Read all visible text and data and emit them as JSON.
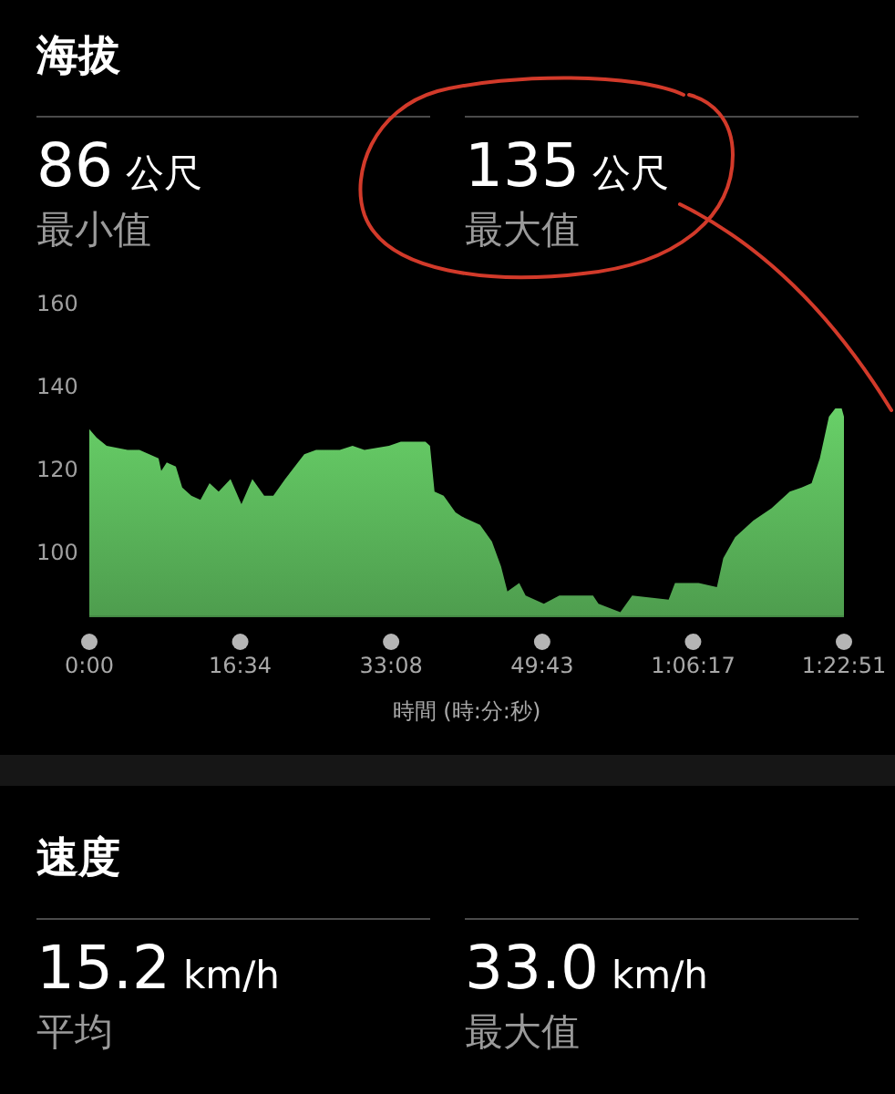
{
  "chart_data": [
    {
      "type": "area",
      "title": "海拔",
      "annotations": [
        "86 公尺",
        "最小值",
        "135 公尺",
        "最大值"
      ],
      "xlabel": "時間 (時:分:秒)",
      "color": "#5cb85c",
      "x": [
        0,
        0.8,
        1.9,
        4.2,
        5.2,
        5.5,
        7.6,
        7.9,
        8.5,
        9.5,
        10.2,
        11.2,
        12.2,
        13.2,
        14.2,
        15.5,
        16.7,
        17.9,
        19.2,
        20.2,
        21.5,
        23.6,
        24.9,
        27.5,
        28.9,
        30.2,
        32.9,
        34.2,
        36.9,
        37.4,
        37.9,
        38.9,
        40.2,
        40.9,
        42.9,
        44.2,
        45.2,
        45.9,
        47.2,
        47.9,
        49.9,
        51.6,
        55.3,
        55.9,
        58.3,
        59.6,
        63.6,
        64.3,
        66.9,
        68.9,
        69.6,
        70.9,
        72.9,
        74.9,
        76.9,
        78.2,
        79.3,
        80.2,
        81.2,
        81.9,
        82.6,
        82.85
      ],
      "values": [
        130,
        128,
        126,
        125,
        125,
        125,
        123,
        120,
        122,
        121,
        116,
        114,
        113,
        117,
        115,
        118,
        112,
        118,
        114,
        114,
        118,
        124,
        125,
        125,
        126,
        125,
        126,
        127,
        127,
        126,
        115,
        114,
        110,
        109,
        107,
        103,
        97,
        91,
        93,
        90,
        88,
        90,
        90,
        88,
        86,
        90,
        89,
        93,
        93,
        92,
        99,
        104,
        108,
        111,
        115,
        116,
        117,
        123,
        133,
        135,
        135,
        133
      ],
      "xlim": [
        0,
        82.85
      ],
      "ylim": [
        85,
        160
      ],
      "xticks": [
        {
          "value": 0,
          "label": "0:00"
        },
        {
          "value": 16.567,
          "label": "16:34"
        },
        {
          "value": 33.133,
          "label": "33:08"
        },
        {
          "value": 49.717,
          "label": "49:43"
        },
        {
          "value": 66.283,
          "label": "1:06:17"
        },
        {
          "value": 82.85,
          "label": "1:22:51"
        }
      ],
      "yticks": [
        100,
        120,
        140,
        160
      ]
    },
    {
      "type": "other",
      "title": "速度",
      "annotations": [
        "15.2 km/h",
        "平均",
        "33.0 km/h",
        "最大值"
      ]
    }
  ]
}
